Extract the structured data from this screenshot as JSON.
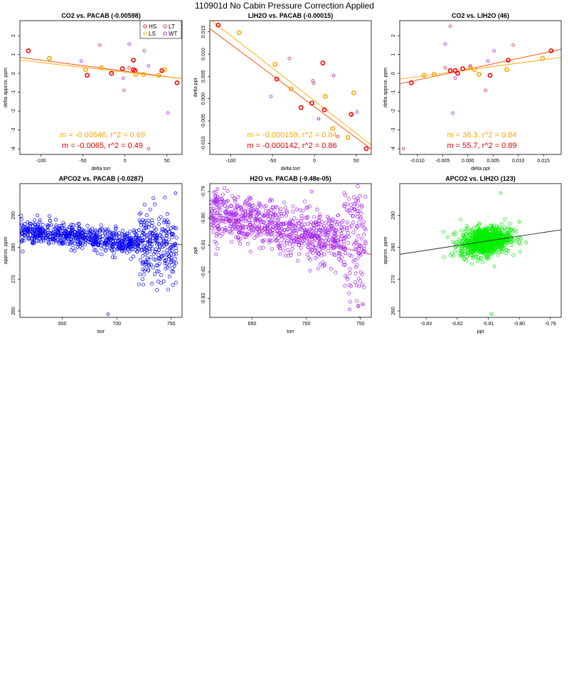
{
  "figure": {
    "title": "110901d   No Cabin Pressure Correction Applied"
  },
  "legend": {
    "items": [
      {
        "label": "HS",
        "color": "#ff0000"
      },
      {
        "label": "LS",
        "color": "#ffa500"
      },
      {
        "label": "LT",
        "color": "#d73030"
      },
      {
        "label": "WT",
        "color": "#a020f0"
      }
    ]
  },
  "chart_data": [
    {
      "type": "scatter",
      "title": "CO2 vs. PACAB (-0.00598)",
      "xlabel": "delta torr",
      "ylabel": "delta approx. ppm",
      "xlim": [
        -125,
        68
      ],
      "ylim": [
        -4.3,
        2.8
      ],
      "xticks": [
        -100,
        -50,
        0,
        50
      ],
      "yticks": [
        -4,
        -3,
        -2,
        -1,
        0,
        1,
        2
      ],
      "xtick_labels": [
        "-100",
        "-50",
        "0",
        "50"
      ],
      "ytick_labels": [
        "-4",
        "-3",
        "-2",
        "-1",
        "0",
        "1",
        "2"
      ],
      "series": [
        {
          "name": "HS",
          "color": "#ff0000",
          "lw": 1.6,
          "x": [
            -115,
            -45,
            -16,
            10,
            12,
            44,
            62,
            -3,
            10
          ],
          "y": [
            1.2,
            -0.1,
            0.0,
            0.7,
            0.15,
            0.15,
            -0.5,
            0.25,
            0.2
          ]
        },
        {
          "name": "LS",
          "color": "#ffa500",
          "lw": 1.6,
          "x": [
            -90,
            -47,
            -28,
            13,
            22,
            40,
            47
          ],
          "y": [
            0.8,
            0.2,
            0.3,
            -0.05,
            -0.05,
            -0.1,
            0.2
          ]
        },
        {
          "name": "LT",
          "color": "#d73030",
          "lw": 0.8,
          "x": [
            -30,
            -1,
            5,
            28,
            43
          ],
          "y": [
            1.5,
            -0.9,
            0.3,
            -4.0,
            0.15
          ]
        },
        {
          "name": "WT",
          "color": "#a020f0",
          "lw": 0.8,
          "x": [
            -52,
            -2,
            5,
            23,
            28,
            51
          ],
          "y": [
            0.65,
            -0.25,
            1.55,
            1.2,
            0.4,
            -2.1
          ]
        }
      ],
      "fits": [
        {
          "color": "#ff4500",
          "x": [
            -125,
            68
          ],
          "y": [
            0.85,
            -0.28
          ]
        },
        {
          "color": "#ffa500",
          "x": [
            -125,
            68
          ],
          "y": [
            0.7,
            -0.28
          ]
        }
      ],
      "annotations": [
        {
          "text": "m = -0.00546, r^2 = 0.69",
          "color": "#ffa500"
        },
        {
          "text": "m = -0.0065, r^2 = 0.49",
          "color": "#e00000"
        }
      ],
      "show_legend": true
    },
    {
      "type": "scatter",
      "title": "LIH2O vs. PACAB (-0.00015)",
      "xlabel": "delta torr",
      "ylabel": "delta ppt",
      "xlim": [
        -125,
        68
      ],
      "ylim": [
        -0.0125,
        0.0175
      ],
      "xticks": [
        -100,
        -50,
        0,
        50
      ],
      "yticks": [
        -0.01,
        -0.005,
        0,
        0.005,
        0.01,
        0.015
      ],
      "xtick_labels": [
        "-100",
        "-50",
        "0",
        "50"
      ],
      "ytick_labels": [
        "-0.010",
        "-0.005",
        "0.000",
        "0.005",
        "0.010",
        "0.015"
      ],
      "series": [
        {
          "name": "HS",
          "color": "#ff0000",
          "lw": 1.6,
          "x": [
            -115,
            -45,
            -16,
            -3,
            10,
            12,
            44,
            62
          ],
          "y": [
            0.0165,
            0.0044,
            -0.002,
            -0.001,
            0.008,
            -0.0025,
            -0.0035,
            -0.0112
          ]
        },
        {
          "name": "LS",
          "color": "#ffa500",
          "lw": 1.6,
          "x": [
            -90,
            -47,
            -28,
            13,
            22,
            40,
            47
          ],
          "y": [
            0.0148,
            0.0077,
            0.0022,
            0.0005,
            -0.0067,
            -0.0087,
            0.0013
          ]
        },
        {
          "name": "LT",
          "color": "#d73030",
          "lw": 0.8,
          "x": [
            -30,
            -1,
            5,
            28,
            43
          ],
          "y": [
            0.009,
            0.0035,
            -0.0045,
            -0.0085,
            -0.0035
          ]
        },
        {
          "name": "WT",
          "color": "#a020f0",
          "lw": 0.8,
          "x": [
            -52,
            -2,
            5,
            23,
            28,
            51
          ],
          "y": [
            0.0005,
            0.004,
            -0.0045,
            0.0052,
            -0.0128,
            -0.003
          ]
        }
      ],
      "fits": [
        {
          "color": "#ff4500",
          "x": [
            -125,
            68
          ],
          "y": [
            0.0157,
            -0.0113
          ]
        },
        {
          "color": "#ffa500",
          "x": [
            -125,
            68
          ],
          "y": [
            0.0178,
            -0.0104
          ]
        }
      ],
      "annotations": [
        {
          "text": "m = -0.000159, r^2 = 0.84",
          "color": "#ffa500"
        },
        {
          "text": "m = -0.000142, r^2 = 0.86",
          "color": "#e00000"
        }
      ],
      "show_legend": false
    },
    {
      "type": "scatter",
      "title": "CO2 vs. LIH2O (46)",
      "xlabel": "delta ppt",
      "ylabel": "delta approx. ppm",
      "xlim": [
        -0.0135,
        0.0185
      ],
      "ylim": [
        -4.3,
        2.8
      ],
      "xticks": [
        -0.01,
        -0.005,
        0,
        0.005,
        0.01,
        0.015
      ],
      "yticks": [
        -4,
        -3,
        -2,
        -1,
        0,
        1,
        2
      ],
      "xtick_labels": [
        "-0.010",
        "-0.005",
        "0.000",
        "0.005",
        "0.010",
        "0.015"
      ],
      "ytick_labels": [
        "-4",
        "-3",
        "-2",
        "-1",
        "0",
        "1",
        "2"
      ],
      "series": [
        {
          "name": "HS",
          "color": "#ff0000",
          "lw": 1.6,
          "x": [
            -0.0112,
            -0.0035,
            -0.0025,
            -0.002,
            -0.001,
            0.0044,
            0.008,
            0.0165
          ],
          "y": [
            -0.5,
            0.15,
            0.15,
            0.0,
            0.25,
            -0.1,
            0.7,
            1.2
          ]
        },
        {
          "name": "LS",
          "color": "#ffa500",
          "lw": 1.6,
          "x": [
            -0.0087,
            -0.0067,
            0.0005,
            0.0013,
            0.0022,
            0.0077,
            0.0148
          ],
          "y": [
            -0.1,
            -0.05,
            0.3,
            0.2,
            -0.05,
            0.2,
            0.8
          ]
        },
        {
          "name": "LT",
          "color": "#d73030",
          "lw": 0.8,
          "x": [
            -0.0128,
            -0.0035,
            0.0035,
            0.009,
            -0.0045
          ],
          "y": [
            -4.0,
            2.5,
            -0.9,
            1.5,
            0.3
          ]
        },
        {
          "name": "WT",
          "color": "#a020f0",
          "lw": 0.8,
          "x": [
            -0.003,
            -0.0045,
            0.004,
            0.0052,
            0.0005,
            -0.0025
          ],
          "y": [
            -2.1,
            1.55,
            0.65,
            1.2,
            0.4,
            -0.25
          ]
        }
      ],
      "fits": [
        {
          "color": "#ff4500",
          "x": [
            -0.0135,
            0.0185
          ],
          "y": [
            -0.55,
            1.28
          ]
        },
        {
          "color": "#ffa500",
          "x": [
            -0.0135,
            0.0185
          ],
          "y": [
            -0.3,
            0.85
          ]
        }
      ],
      "annotations": [
        {
          "text": "m = 36.3, r^2 = 0.84",
          "color": "#ffa500"
        },
        {
          "text": "m = 55.7, r^2 = 0.89",
          "color": "#e00000"
        }
      ],
      "show_legend": false
    },
    {
      "type": "scatter",
      "title": "APCO2 vs. PACAB (-0.0287)",
      "xlabel": "torr",
      "ylabel": "approx. ppm",
      "xlim": [
        611,
        760
      ],
      "ylim": [
        258,
        300
      ],
      "xticks": [
        650,
        700,
        750
      ],
      "yticks": [
        260,
        270,
        280,
        290
      ],
      "xtick_labels": [
        "650",
        "700",
        "750"
      ],
      "ytick_labels": [
        "260",
        "270",
        "280",
        "290"
      ],
      "dense": {
        "color": "#0000ff",
        "x_range": [
          612,
          755
        ],
        "y_base": [
          285,
          280
        ],
        "y_spread": 1.8,
        "widen_above": 720,
        "widen": 3.5,
        "count": 900
      },
      "series": [
        {
          "name": "outliers",
          "color": "#0000ff",
          "lw": 0.8,
          "x": [
            692,
            753,
            754,
            750,
            745,
            640,
            620
          ],
          "y": [
            259,
            274,
            297,
            276,
            282,
            287,
            286
          ]
        }
      ],
      "fits": [
        {
          "color": "#1a1aa0",
          "x": [
            611,
            760
          ],
          "y": [
            285.0,
            280.8
          ]
        }
      ],
      "annotations": [],
      "show_legend": false
    },
    {
      "type": "scatter",
      "title": "H2O vs. PACAB (-9.48e-05)",
      "xlabel": "torr",
      "ylabel": "ppt",
      "xlim": [
        611,
        760
      ],
      "ylim": [
        -0.837,
        -0.787
      ],
      "xticks": [
        650,
        700,
        750
      ],
      "yticks": [
        -0.83,
        -0.82,
        -0.81,
        -0.8,
        -0.79
      ],
      "xtick_labels": [
        "650",
        "700",
        "750"
      ],
      "ytick_labels": [
        "-0.83",
        "-0.82",
        "-0.81",
        "-0.80",
        "-0.79"
      ],
      "dense": {
        "color": "#a020f0",
        "x_range": [
          612,
          755
        ],
        "y_base": [
          -0.798,
          -0.811
        ],
        "y_spread": 0.0045,
        "widen_above": 735,
        "widen": 0.009,
        "count": 900
      },
      "series": [
        {
          "name": "outliers",
          "color": "#a020f0",
          "lw": 0.8,
          "x": [
            616,
            618,
            620,
            740,
            748,
            752,
            705
          ],
          "y": [
            -0.792,
            -0.789,
            -0.793,
            -0.834,
            -0.833,
            -0.832,
            -0.79
          ]
        }
      ],
      "fits": [
        {
          "color": "#d040a0",
          "x": [
            611,
            760
          ],
          "y": [
            -0.7995,
            -0.8135
          ]
        }
      ],
      "annotations": [],
      "show_legend": false
    },
    {
      "type": "scatter",
      "title": "APCO2 vs. LIH2O (123)",
      "xlabel": "ppt",
      "ylabel": "approx. ppm",
      "xlim": [
        -0.8385,
        -0.7865
      ],
      "ylim": [
        258,
        300
      ],
      "xticks": [
        -0.83,
        -0.82,
        -0.81,
        -0.8,
        -0.79
      ],
      "yticks": [
        260,
        270,
        280,
        290
      ],
      "xtick_labels": [
        "-0.83",
        "-0.82",
        "-0.81",
        "-0.80",
        "-0.79"
      ],
      "ytick_labels": [
        "260",
        "270",
        "280",
        "290"
      ],
      "dense": {
        "color": "#00ee00",
        "x_range": [
          -0.837,
          -0.788
        ],
        "y_base": [
          278.5,
          285
        ],
        "y_spread": 2.2,
        "widen_above": 99,
        "widen": 0,
        "count": 900,
        "center": -0.811,
        "center_spread": 0.008
      },
      "series": [
        {
          "name": "outliers",
          "color": "#00ee00",
          "lw": 0.8,
          "x": [
            -0.809,
            -0.808,
            -0.806,
            -0.8
          ],
          "y": [
            259,
            274,
            297,
            288
          ]
        }
      ],
      "fits": [
        {
          "color": "#2a2a2a",
          "x": [
            -0.8385,
            -0.7865
          ],
          "y": [
            277.8,
            285.5
          ]
        }
      ],
      "annotations": [],
      "show_legend": false
    }
  ]
}
